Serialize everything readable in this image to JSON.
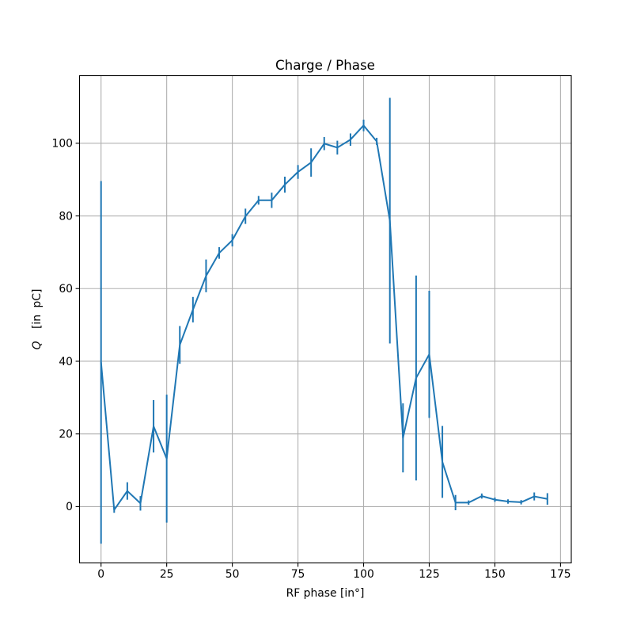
{
  "chart_data": {
    "type": "line",
    "title": "Charge / Phase",
    "xlabel": "RF phase [in°]",
    "ylabel": "Q [in pC]",
    "ylabel_symbol": "Q",
    "ylabel_rest": "[in pC]",
    "legend": null,
    "grid": true,
    "grid_color": "#b0b0b0",
    "line_color": "#1f77b4",
    "background_color": "#ffffff",
    "xlim": [
      -8.2,
      179.1
    ],
    "ylim": [
      -15.5,
      118.6
    ],
    "xticks": [
      0,
      25,
      50,
      75,
      100,
      125,
      150,
      175
    ],
    "yticks": [
      0,
      20,
      40,
      60,
      80,
      100
    ],
    "series": [
      {
        "name": "charge-vs-phase",
        "x": [
          0,
          5,
          10,
          15,
          20,
          25,
          30,
          35,
          40,
          45,
          50,
          55,
          60,
          65,
          70,
          75,
          80,
          85,
          90,
          95,
          100,
          105,
          110,
          115,
          120,
          125,
          130,
          135,
          140,
          145,
          150,
          155,
          160,
          165,
          170
        ],
        "y": [
          39.7,
          -0.9,
          4.3,
          0.9,
          22.1,
          13.2,
          44.5,
          54.2,
          63.5,
          69.8,
          73.3,
          79.9,
          84.3,
          84.3,
          88.6,
          92.1,
          94.7,
          99.9,
          98.8,
          101.0,
          104.9,
          100.5,
          78.7,
          18.9,
          35.4,
          41.9,
          12.3,
          1.1,
          1.1,
          2.9,
          1.9,
          1.4,
          1.2,
          2.8,
          2.1
        ],
        "yerr": [
          49.9,
          0.8,
          2.4,
          2.0,
          7.2,
          17.6,
          5.2,
          3.5,
          4.5,
          1.6,
          1.7,
          2.1,
          1.2,
          2.1,
          2.2,
          1.9,
          3.9,
          1.8,
          1.9,
          1.7,
          1.6,
          1.0,
          33.8,
          9.5,
          28.2,
          17.5,
          9.9,
          2.1,
          0.6,
          0.7,
          0.6,
          0.6,
          0.6,
          1.1,
          1.6
        ]
      }
    ]
  }
}
